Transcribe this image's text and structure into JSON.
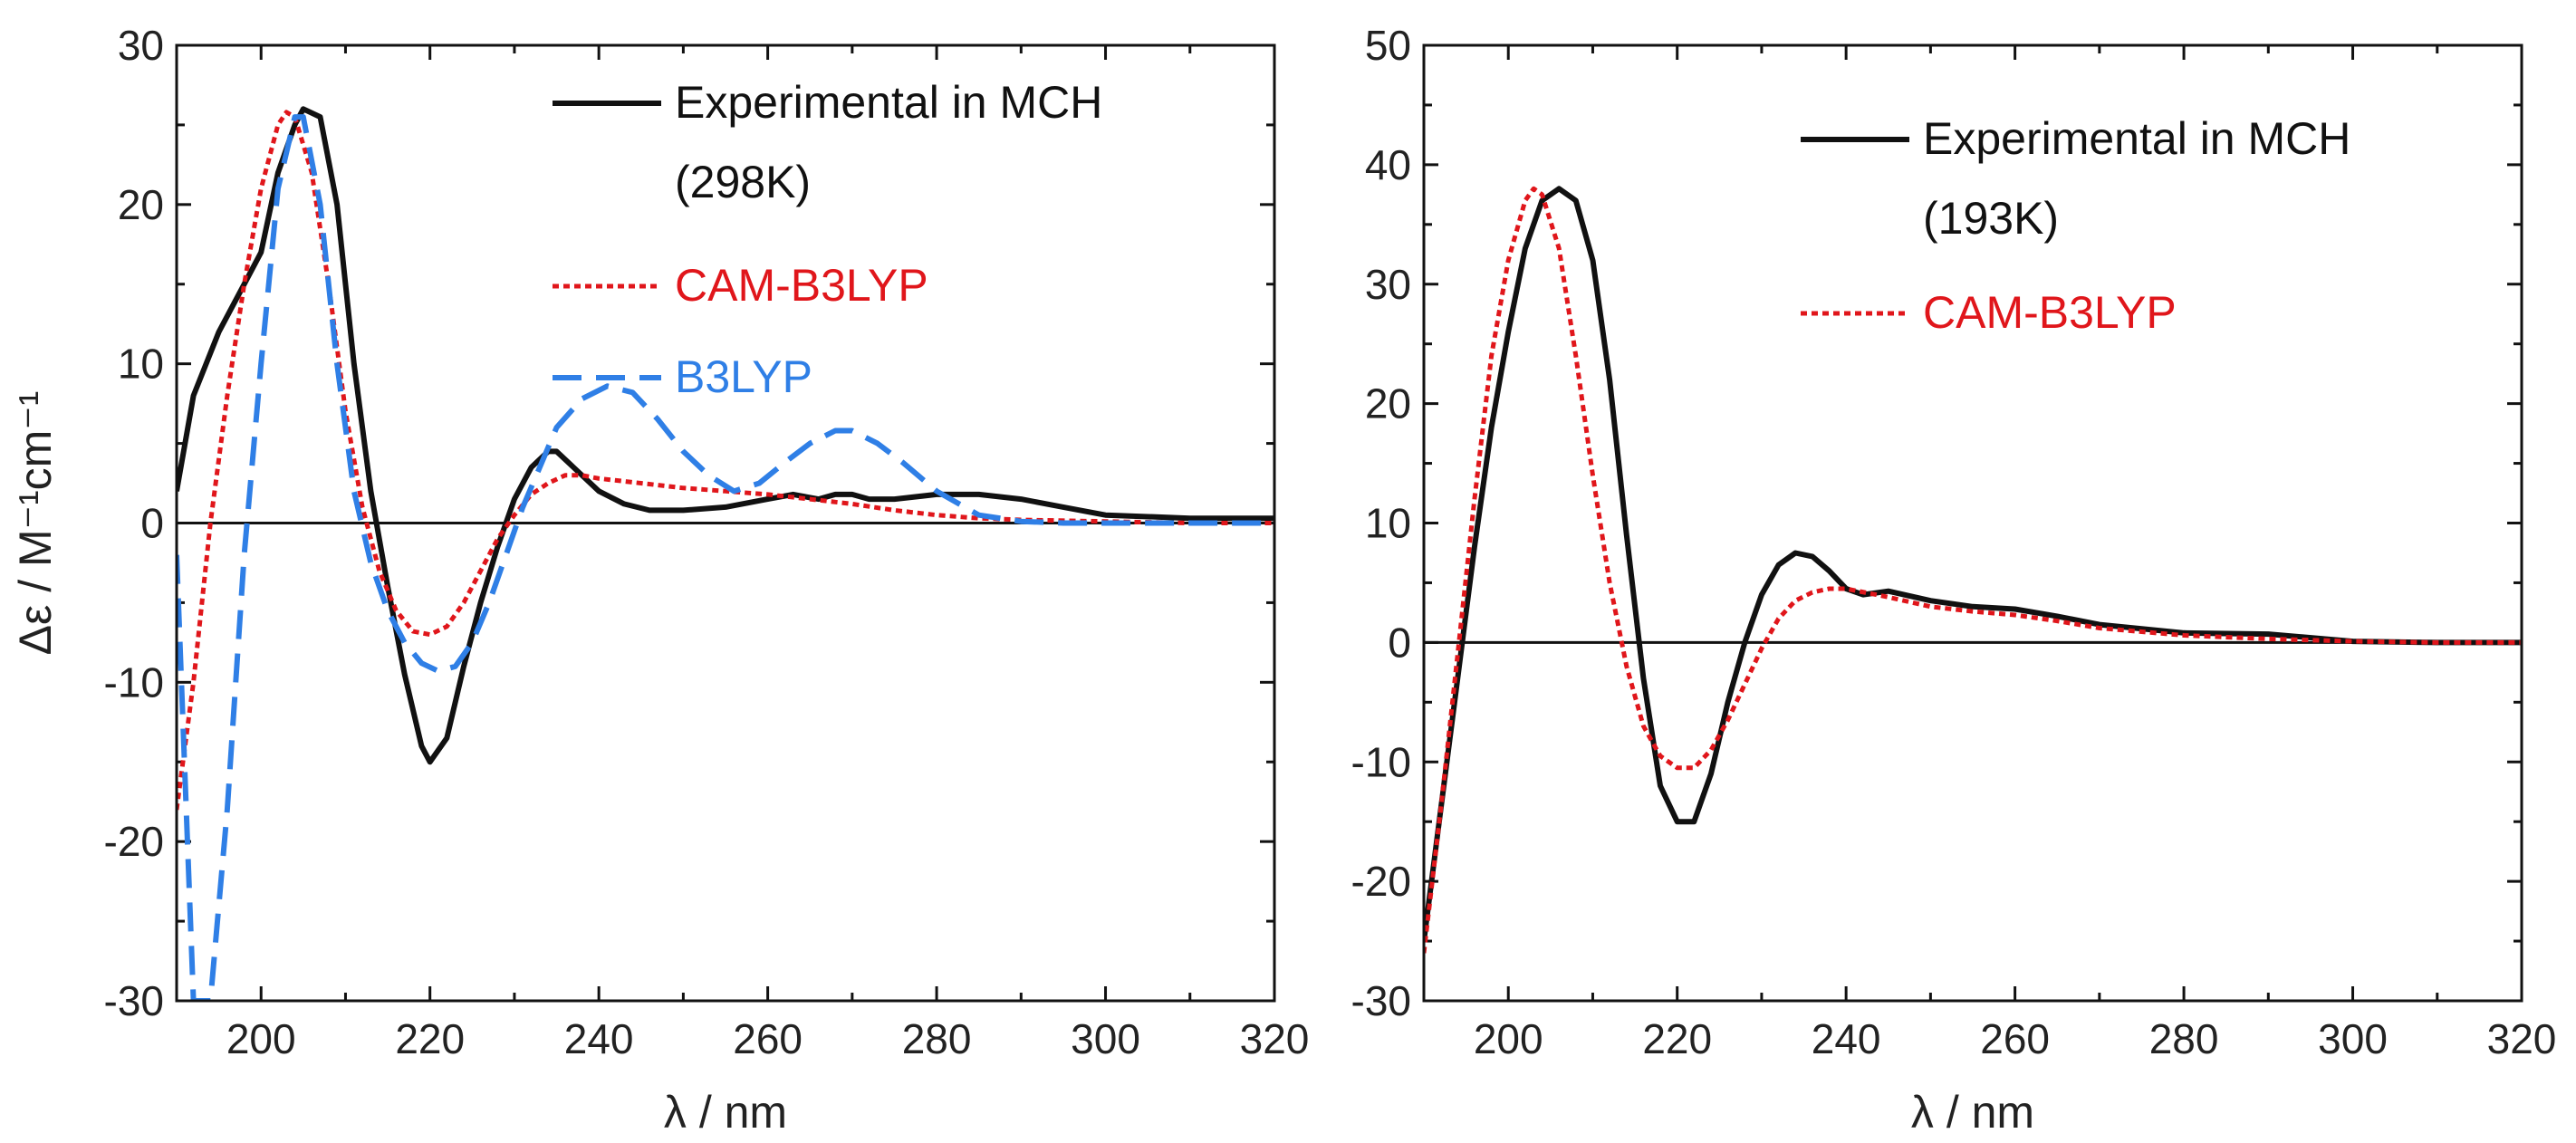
{
  "chart_data": [
    {
      "type": "line",
      "xlabel": "λ / nm",
      "ylabel": "Δε / M⁻¹cm⁻¹",
      "xlim": [
        190,
        320
      ],
      "ylim": [
        -30,
        30
      ],
      "xticks": [
        200,
        220,
        240,
        260,
        280,
        300,
        320
      ],
      "yticks": [
        -30,
        -20,
        -10,
        0,
        10,
        20,
        30
      ],
      "zero_line": true,
      "legend_position": "top-right",
      "series": [
        {
          "name": "Experimental in MCH",
          "legend_line2": "(298K)",
          "color": "#111111",
          "style": "solid",
          "x": [
            190,
            192,
            195,
            198,
            200,
            202,
            204,
            205,
            207,
            209,
            211,
            213,
            215,
            217,
            219,
            220,
            222,
            224,
            226,
            228,
            230,
            232,
            234,
            235,
            237,
            240,
            243,
            246,
            250,
            255,
            260,
            263,
            266,
            268,
            270,
            272,
            275,
            280,
            285,
            290,
            295,
            300,
            310,
            320
          ],
          "y": [
            2,
            8,
            12,
            15,
            17,
            22,
            25,
            26,
            25.5,
            20,
            10,
            2,
            -4,
            -9.5,
            -14,
            -15,
            -13.5,
            -9,
            -5,
            -1.5,
            1.5,
            3.5,
            4.5,
            4.5,
            3.5,
            2,
            1.2,
            0.8,
            0.8,
            1,
            1.5,
            1.8,
            1.5,
            1.8,
            1.8,
            1.5,
            1.5,
            1.8,
            1.8,
            1.5,
            1,
            0.5,
            0.3,
            0.3
          ]
        },
        {
          "name": "CAM-B3LYP",
          "color": "#e0161b",
          "style": "dotted",
          "x": [
            190,
            192,
            194,
            196,
            198,
            200,
            202,
            203,
            204,
            206,
            208,
            210,
            212,
            214,
            216,
            218,
            220,
            222,
            224,
            226,
            228,
            230,
            232,
            234,
            236,
            238,
            240,
            245,
            250,
            255,
            260,
            265,
            270,
            275,
            280,
            285,
            290,
            300,
            310,
            320
          ],
          "y": [
            -18,
            -10,
            0,
            8,
            15,
            21,
            25,
            25.8,
            25.5,
            22,
            15,
            7,
            1,
            -3,
            -5.5,
            -6.8,
            -7,
            -6.5,
            -5,
            -3,
            -1,
            0.5,
            1.8,
            2.5,
            3,
            3,
            2.8,
            2.5,
            2.2,
            2,
            1.8,
            1.5,
            1.2,
            0.8,
            0.5,
            0.3,
            0.2,
            0.1,
            0,
            0
          ]
        },
        {
          "name": "B3LYP",
          "color": "#2f7fe6",
          "style": "dashed",
          "x": [
            190,
            192,
            194,
            196,
            198,
            200,
            202,
            204,
            205,
            207,
            209,
            211,
            213,
            215,
            217,
            219,
            221,
            223,
            225,
            227,
            229,
            231,
            233,
            235,
            238,
            241,
            244,
            247,
            250,
            253,
            256,
            259,
            262,
            265,
            268,
            270,
            273,
            276,
            280,
            285,
            290,
            295,
            300,
            310,
            320
          ],
          "y": [
            -2,
            -30,
            -30,
            -18,
            -2,
            10,
            21,
            25.5,
            25.5,
            20,
            10,
            2,
            -2.5,
            -5.5,
            -7.5,
            -8.8,
            -9.3,
            -9,
            -7.5,
            -5,
            -2,
            1,
            3.5,
            6,
            7.8,
            8.6,
            8.2,
            6.5,
            4.5,
            3,
            2,
            2.5,
            3.8,
            5,
            5.8,
            5.8,
            5,
            3.8,
            2,
            0.5,
            0.1,
            0,
            0,
            0,
            0
          ]
        }
      ]
    },
    {
      "type": "line",
      "xlabel": "λ / nm",
      "ylabel": "",
      "xlim": [
        190,
        320
      ],
      "ylim": [
        -30,
        50
      ],
      "xticks": [
        200,
        220,
        240,
        260,
        280,
        300,
        320
      ],
      "yticks": [
        -30,
        -20,
        -10,
        0,
        10,
        20,
        30,
        40,
        50
      ],
      "zero_line": true,
      "legend_position": "top-right",
      "series": [
        {
          "name": "Experimental in MCH",
          "legend_line2": "(193K)",
          "color": "#111111",
          "style": "solid",
          "x": [
            190,
            192,
            194,
            196,
            198,
            200,
            202,
            204,
            206,
            208,
            210,
            212,
            214,
            216,
            218,
            220,
            222,
            224,
            226,
            228,
            230,
            232,
            234,
            236,
            238,
            240,
            242,
            245,
            250,
            255,
            260,
            265,
            270,
            280,
            290,
            300,
            310,
            320
          ],
          "y": [
            -25,
            -14,
            -3,
            8,
            18,
            26,
            33,
            37,
            38,
            37,
            32,
            22,
            9,
            -3,
            -12,
            -15,
            -15,
            -11,
            -5,
            0,
            4,
            6.5,
            7.5,
            7.2,
            6,
            4.5,
            4,
            4.3,
            3.5,
            3,
            2.8,
            2.2,
            1.5,
            0.8,
            0.7,
            0.1,
            0,
            0
          ]
        },
        {
          "name": "CAM-B3LYP",
          "color": "#e0161b",
          "style": "dotted",
          "x": [
            190,
            192,
            194,
            196,
            198,
            200,
            202,
            203,
            204,
            206,
            208,
            210,
            212,
            214,
            216,
            218,
            220,
            222,
            224,
            226,
            228,
            230,
            232,
            234,
            236,
            238,
            240,
            245,
            250,
            255,
            260,
            265,
            270,
            280,
            290,
            300,
            310,
            320
          ],
          "y": [
            -26,
            -14,
            -1,
            12,
            24,
            32,
            37,
            38,
            37.5,
            33,
            24,
            14,
            5,
            -2,
            -7,
            -9.5,
            -10.5,
            -10.5,
            -9,
            -6.5,
            -3.5,
            -0.5,
            2,
            3.5,
            4.2,
            4.5,
            4.5,
            3.8,
            3,
            2.6,
            2.3,
            1.8,
            1.2,
            0.6,
            0.3,
            0.1,
            0,
            0
          ]
        }
      ]
    }
  ]
}
